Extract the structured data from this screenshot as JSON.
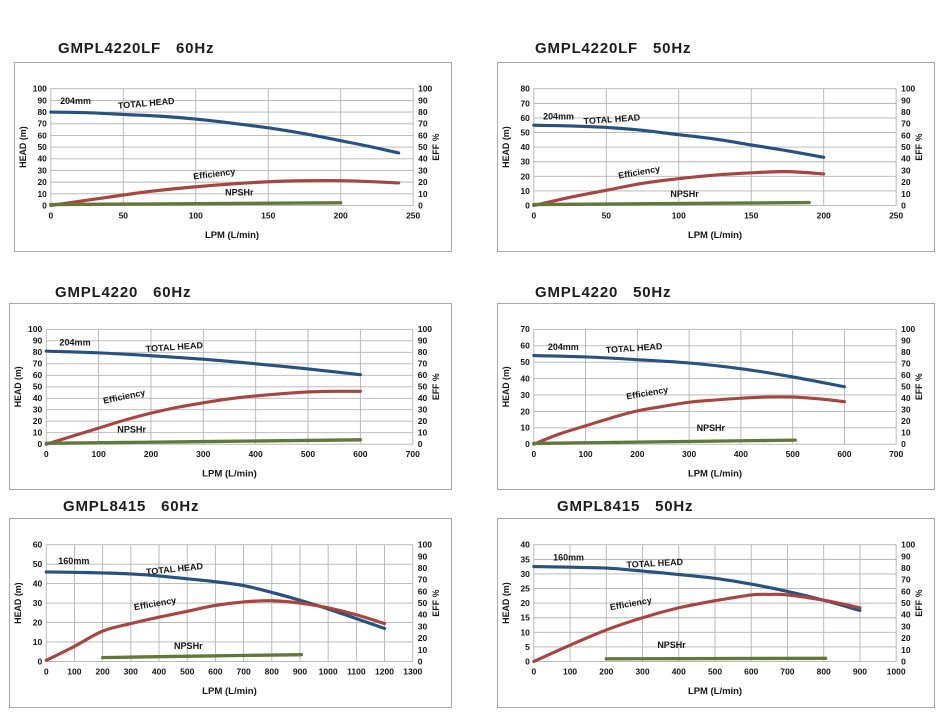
{
  "colors": {
    "head": "#27517f",
    "efficiency": "#a8453f",
    "npshr": "#62783a",
    "grid": "#b3b3b3",
    "box_border": "#a9a9a9",
    "text": "#151515"
  },
  "chart_data": [
    {
      "type": "line",
      "model": "GMPL4220LF",
      "frequency": "60Hz",
      "impeller": "204mm",
      "impeller_pos": {
        "x": 17,
        "y": 87
      },
      "xlabel": "LPM (L/min)",
      "ylabel_left": "HEAD (m)",
      "ylabel_right": "EFF %",
      "x_axis": {
        "min": 0,
        "max": 250,
        "step": 50
      },
      "y_left": {
        "min": 0,
        "max": 100,
        "step": 10
      },
      "y_right": {
        "min": 0,
        "max": 100,
        "step": 10
      },
      "series": [
        {
          "name": "TOTAL HEAD",
          "color_key": "head",
          "axis": "left",
          "points": [
            [
              0,
              80
            ],
            [
              25,
              79.5
            ],
            [
              50,
              78
            ],
            [
              75,
              76.5
            ],
            [
              100,
              74
            ],
            [
              125,
              70.5
            ],
            [
              150,
              66.5
            ],
            [
              175,
              61.5
            ],
            [
              200,
              55.5
            ],
            [
              220,
              50.5
            ],
            [
              240,
              45
            ]
          ],
          "label": {
            "x": 66,
            "y": 85,
            "rot": -5
          }
        },
        {
          "name": "Efficiency",
          "color_key": "efficiency",
          "axis": "right",
          "points": [
            [
              0,
              0
            ],
            [
              25,
              4.5
            ],
            [
              50,
              9
            ],
            [
              75,
              13
            ],
            [
              100,
              16
            ],
            [
              125,
              18.5
            ],
            [
              150,
              20.3
            ],
            [
              175,
              21.2
            ],
            [
              200,
              21.3
            ],
            [
              220,
              20.5
            ],
            [
              240,
              19.3
            ]
          ],
          "label": {
            "x": 113,
            "y": 24.5,
            "rot": -7
          }
        },
        {
          "name": "NPSHr",
          "color_key": "npshr",
          "axis": "left",
          "points": [
            [
              0,
              0.8
            ],
            [
              100,
              1.5
            ],
            [
              200,
              2.3
            ]
          ],
          "label": {
            "x": 130,
            "y": 8.5,
            "rot": 0
          }
        }
      ]
    },
    {
      "type": "line",
      "model": "GMPL4220LF",
      "frequency": "50Hz",
      "impeller": "204mm",
      "impeller_pos": {
        "x": 17,
        "y": 59
      },
      "xlabel": "LPM (L/min)",
      "ylabel_left": "HEAD (m)",
      "ylabel_right": "EFF %",
      "x_axis": {
        "min": 0,
        "max": 250,
        "step": 50
      },
      "y_left": {
        "min": 0,
        "max": 80,
        "step": 10
      },
      "y_right": {
        "min": 0,
        "max": 100,
        "step": 10
      },
      "series": [
        {
          "name": "TOTAL HEAD",
          "color_key": "head",
          "axis": "left",
          "points": [
            [
              0,
              55
            ],
            [
              25,
              54.5
            ],
            [
              50,
              53.5
            ],
            [
              75,
              51.5
            ],
            [
              100,
              48.5
            ],
            [
              125,
              45.5
            ],
            [
              150,
              41.5
            ],
            [
              175,
              37.5
            ],
            [
              200,
              33
            ]
          ],
          "label": {
            "x": 54,
            "y": 57,
            "rot": -4
          }
        },
        {
          "name": "Efficiency",
          "color_key": "efficiency",
          "axis": "right",
          "points": [
            [
              0,
              0
            ],
            [
              25,
              7
            ],
            [
              50,
              13
            ],
            [
              75,
              19
            ],
            [
              100,
              23
            ],
            [
              125,
              26
            ],
            [
              150,
              28
            ],
            [
              175,
              29
            ],
            [
              200,
              27
            ]
          ],
          "label": {
            "x": 73,
            "y": 26,
            "rot": -10
          }
        },
        {
          "name": "NPSHr",
          "color_key": "npshr",
          "axis": "left",
          "points": [
            [
              0,
              0.6
            ],
            [
              95,
              1.3
            ],
            [
              190,
              2
            ]
          ],
          "label": {
            "x": 104,
            "y": 6,
            "rot": 0
          }
        }
      ]
    },
    {
      "type": "line",
      "model": "GMPL4220",
      "frequency": "60Hz",
      "impeller": "204mm",
      "impeller_pos": {
        "x": 55,
        "y": 86
      },
      "xlabel": "LPM (L/min)",
      "ylabel_left": "HEAD (m)",
      "ylabel_right": "EFF %",
      "x_axis": {
        "min": 0,
        "max": 700,
        "step": 100
      },
      "y_left": {
        "min": 0,
        "max": 100,
        "step": 10
      },
      "y_right": {
        "min": 0,
        "max": 100,
        "step": 10
      },
      "series": [
        {
          "name": "TOTAL HEAD",
          "color_key": "head",
          "axis": "left",
          "points": [
            [
              0,
              81
            ],
            [
              100,
              79.5
            ],
            [
              200,
              77
            ],
            [
              300,
              74
            ],
            [
              400,
              70
            ],
            [
              500,
              65.5
            ],
            [
              600,
              60.5
            ]
          ],
          "label": {
            "x": 245,
            "y": 82,
            "rot": -4
          }
        },
        {
          "name": "Efficiency",
          "color_key": "efficiency",
          "axis": "right",
          "points": [
            [
              0,
              0
            ],
            [
              50,
              7
            ],
            [
              100,
              14
            ],
            [
              150,
              21
            ],
            [
              200,
              27
            ],
            [
              250,
              32
            ],
            [
              300,
              36
            ],
            [
              350,
              39.5
            ],
            [
              400,
              42
            ],
            [
              450,
              44
            ],
            [
              500,
              45.5
            ],
            [
              550,
              46
            ],
            [
              600,
              46
            ]
          ],
          "label": {
            "x": 150,
            "y": 39,
            "rot": -12
          }
        },
        {
          "name": "NPSHr",
          "color_key": "npshr",
          "axis": "left",
          "points": [
            [
              0,
              0.8
            ],
            [
              300,
              2.3
            ],
            [
              600,
              3.8
            ]
          ],
          "label": {
            "x": 163,
            "y": 10,
            "rot": 0
          }
        }
      ]
    },
    {
      "type": "line",
      "model": "GMPL4220",
      "frequency": "50Hz",
      "impeller": "204mm",
      "impeller_pos": {
        "x": 57,
        "y": 57.5
      },
      "xlabel": "LPM (L/min)",
      "ylabel_left": "HEAD (m)",
      "ylabel_right": "EFF %",
      "x_axis": {
        "min": 0,
        "max": 700,
        "step": 100
      },
      "y_left": {
        "min": 0,
        "max": 70,
        "step": 10
      },
      "y_right": {
        "min": 0,
        "max": 100,
        "step": 10
      },
      "series": [
        {
          "name": "TOTAL HEAD",
          "color_key": "head",
          "axis": "left",
          "points": [
            [
              0,
              54
            ],
            [
              100,
              53.2
            ],
            [
              200,
              51.5
            ],
            [
              300,
              49.5
            ],
            [
              400,
              46
            ],
            [
              500,
              41
            ],
            [
              600,
              35
            ]
          ],
          "label": {
            "x": 194,
            "y": 56.8,
            "rot": -4
          }
        },
        {
          "name": "Efficiency",
          "color_key": "efficiency",
          "axis": "right",
          "points": [
            [
              0,
              0
            ],
            [
              50,
              9
            ],
            [
              100,
              16
            ],
            [
              150,
              23
            ],
            [
              200,
              29
            ],
            [
              250,
              33
            ],
            [
              300,
              36.5
            ],
            [
              350,
              38.5
            ],
            [
              400,
              40
            ],
            [
              450,
              41
            ],
            [
              500,
              41
            ],
            [
              550,
              39.5
            ],
            [
              600,
              37
            ]
          ],
          "label": {
            "x": 220,
            "y": 42,
            "rot": -10
          }
        },
        {
          "name": "NPSHr",
          "color_key": "npshr",
          "axis": "left",
          "points": [
            [
              0,
              0.5
            ],
            [
              250,
              1.5
            ],
            [
              505,
              2.5
            ]
          ],
          "label": {
            "x": 342,
            "y": 8,
            "rot": 0
          }
        }
      ]
    },
    {
      "type": "line",
      "model": "GMPL8415",
      "frequency": "60Hz",
      "impeller": "160mm",
      "impeller_pos": {
        "x": 98,
        "y": 50
      },
      "xlabel": "LPM (L/min)",
      "ylabel_left": "HEAD (m)",
      "ylabel_right": "EFF %",
      "x_axis": {
        "min": 0,
        "max": 1300,
        "step": 100
      },
      "y_left": {
        "min": 0,
        "max": 60,
        "step": 10
      },
      "y_right": {
        "min": 0,
        "max": 100,
        "step": 10
      },
      "series": [
        {
          "name": "TOTAL HEAD",
          "color_key": "head",
          "axis": "left",
          "points": [
            [
              0,
              46
            ],
            [
              100,
              45.8
            ],
            [
              200,
              45.5
            ],
            [
              300,
              45
            ],
            [
              400,
              44
            ],
            [
              500,
              42.5
            ],
            [
              600,
              41
            ],
            [
              700,
              39
            ],
            [
              800,
              35.5
            ],
            [
              900,
              31.5
            ],
            [
              1000,
              27
            ],
            [
              1100,
              22
            ],
            [
              1200,
              17
            ]
          ],
          "label": {
            "x": 456,
            "y": 46,
            "rot": -6
          }
        },
        {
          "name": "Efficiency",
          "color_key": "efficiency",
          "axis": "right",
          "points": [
            [
              0,
              1
            ],
            [
              100,
              13
            ],
            [
              200,
              26
            ],
            [
              300,
              32.5
            ],
            [
              400,
              38
            ],
            [
              500,
              43
            ],
            [
              600,
              48
            ],
            [
              700,
              51
            ],
            [
              800,
              52
            ],
            [
              900,
              50
            ],
            [
              1000,
              46
            ],
            [
              1100,
              40
            ],
            [
              1200,
              32.5
            ]
          ],
          "label": {
            "x": 388,
            "y": 47,
            "rot": -10
          }
        },
        {
          "name": "NPSHr",
          "color_key": "npshr",
          "axis": "left",
          "points": [
            [
              200,
              2
            ],
            [
              550,
              2.8
            ],
            [
              905,
              3.5
            ]
          ],
          "label": {
            "x": 504,
            "y": 6.5,
            "rot": 0
          }
        }
      ]
    },
    {
      "type": "line",
      "model": "GMPL8415",
      "frequency": "50Hz",
      "impeller": "160mm",
      "impeller_pos": {
        "x": 96,
        "y": 34.5
      },
      "xlabel": "LPM (L/min)",
      "ylabel_left": "HEAD (m)",
      "ylabel_right": "EFF %",
      "x_axis": {
        "min": 0,
        "max": 1000,
        "step": 100
      },
      "y_left": {
        "min": 0,
        "max": 40,
        "step": 5
      },
      "y_right": {
        "min": 0,
        "max": 100,
        "step": 10
      },
      "series": [
        {
          "name": "TOTAL HEAD",
          "color_key": "head",
          "axis": "left",
          "points": [
            [
              0,
              32.5
            ],
            [
              100,
              32.3
            ],
            [
              200,
              32
            ],
            [
              300,
              31
            ],
            [
              400,
              29.8
            ],
            [
              500,
              28.5
            ],
            [
              600,
              26.5
            ],
            [
              700,
              24
            ],
            [
              800,
              21
            ],
            [
              900,
              17.5
            ]
          ],
          "label": {
            "x": 334,
            "y": 32.6,
            "rot": -3
          }
        },
        {
          "name": "Efficiency",
          "color_key": "efficiency",
          "axis": "right",
          "points": [
            [
              0,
              0
            ],
            [
              100,
              14
            ],
            [
              200,
              27
            ],
            [
              300,
              37.5
            ],
            [
              400,
              46
            ],
            [
              500,
              52
            ],
            [
              600,
              57
            ],
            [
              650,
              57.5
            ],
            [
              700,
              57
            ],
            [
              800,
              52.5
            ],
            [
              900,
              46
            ]
          ],
          "label": {
            "x": 269,
            "y": 47,
            "rot": -10
          }
        },
        {
          "name": "NPSHr",
          "color_key": "npshr",
          "axis": "left",
          "points": [
            [
              200,
              0.9
            ],
            [
              500,
              1
            ],
            [
              805,
              1.1
            ]
          ],
          "label": {
            "x": 380,
            "y": 4.6,
            "rot": 0
          }
        }
      ]
    }
  ]
}
